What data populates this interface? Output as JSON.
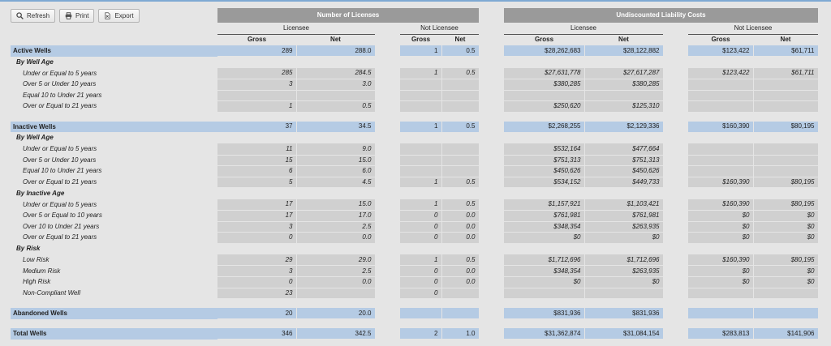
{
  "toolbar": {
    "refresh": "Refresh",
    "print": "Print",
    "export": "Export"
  },
  "headers": {
    "licenses": "Number of Licenses",
    "liability": "Undiscounted Liability Costs",
    "licensee": "Licensee",
    "not_licensee": "Not Licensee",
    "gross": "Gross",
    "net": "Net"
  },
  "rows": [
    {
      "type": "total",
      "label": "Active Wells",
      "v": [
        "289",
        "288.0",
        "1",
        "0.5",
        "$28,262,683",
        "$28,122,882",
        "$123,422",
        "$61,711"
      ]
    },
    {
      "type": "group",
      "label": "By Well Age",
      "v": null
    },
    {
      "type": "sub",
      "label": "Under or Equal to 5 years",
      "v": [
        "285",
        "284.5",
        "1",
        "0.5",
        "$27,631,778",
        "$27,617,287",
        "$123,422",
        "$61,711"
      ]
    },
    {
      "type": "sub",
      "label": "Over 5 or Under 10 years",
      "v": [
        "3",
        "3.0",
        "",
        "",
        "$380,285",
        "$380,285",
        "",
        ""
      ]
    },
    {
      "type": "sub",
      "label": "Equal 10 to Under 21 years",
      "v": [
        "",
        "",
        "",
        "",
        "",
        "",
        "",
        ""
      ]
    },
    {
      "type": "sub",
      "label": "Over or Equal to 21 years",
      "v": [
        "1",
        "0.5",
        "",
        "",
        "$250,620",
        "$125,310",
        "",
        ""
      ]
    },
    {
      "type": "blank"
    },
    {
      "type": "total",
      "label": "Inactive Wells",
      "v": [
        "37",
        "34.5",
        "1",
        "0.5",
        "$2,268,255",
        "$2,129,336",
        "$160,390",
        "$80,195"
      ]
    },
    {
      "type": "group",
      "label": "By Well Age",
      "v": null
    },
    {
      "type": "sub",
      "label": "Under or Equal to 5 years",
      "v": [
        "11",
        "9.0",
        "",
        "",
        "$532,164",
        "$477,664",
        "",
        ""
      ]
    },
    {
      "type": "sub",
      "label": "Over 5 or Under 10 years",
      "v": [
        "15",
        "15.0",
        "",
        "",
        "$751,313",
        "$751,313",
        "",
        ""
      ]
    },
    {
      "type": "sub",
      "label": "Equal 10 to Under 21 years",
      "v": [
        "6",
        "6.0",
        "",
        "",
        "$450,626",
        "$450,626",
        "",
        ""
      ]
    },
    {
      "type": "sub",
      "label": "Over or Equal to 21 years",
      "v": [
        "5",
        "4.5",
        "1",
        "0.5",
        "$534,152",
        "$449,733",
        "$160,390",
        "$80,195"
      ]
    },
    {
      "type": "group",
      "label": "By Inactive Age",
      "v": null
    },
    {
      "type": "sub",
      "label": "Under or Equal to 5 years",
      "v": [
        "17",
        "15.0",
        "1",
        "0.5",
        "$1,157,921",
        "$1,103,421",
        "$160,390",
        "$80,195"
      ]
    },
    {
      "type": "sub",
      "label": "Over 5 or Equal to 10 years",
      "v": [
        "17",
        "17.0",
        "0",
        "0.0",
        "$761,981",
        "$761,981",
        "$0",
        "$0"
      ]
    },
    {
      "type": "sub",
      "label": "Over 10 to Under 21 years",
      "v": [
        "3",
        "2.5",
        "0",
        "0.0",
        "$348,354",
        "$263,935",
        "$0",
        "$0"
      ]
    },
    {
      "type": "sub",
      "label": "Over or Equal to 21 years",
      "v": [
        "0",
        "0.0",
        "0",
        "0.0",
        "$0",
        "$0",
        "$0",
        "$0"
      ]
    },
    {
      "type": "group",
      "label": "By Risk",
      "v": null
    },
    {
      "type": "sub",
      "label": "Low Risk",
      "v": [
        "29",
        "29.0",
        "1",
        "0.5",
        "$1,712,696",
        "$1,712,696",
        "$160,390",
        "$80,195"
      ]
    },
    {
      "type": "sub",
      "label": "Medium Risk",
      "v": [
        "3",
        "2.5",
        "0",
        "0.0",
        "$348,354",
        "$263,935",
        "$0",
        "$0"
      ]
    },
    {
      "type": "sub",
      "label": "High Risk",
      "v": [
        "0",
        "0.0",
        "0",
        "0.0",
        "$0",
        "$0",
        "$0",
        "$0"
      ]
    },
    {
      "type": "sub",
      "label": "Non-Compliant Well",
      "v": [
        "23",
        "",
        "0",
        "",
        "",
        "",
        "",
        ""
      ]
    },
    {
      "type": "blank"
    },
    {
      "type": "total",
      "label": "Abandoned Wells",
      "v": [
        "20",
        "20.0",
        "",
        "",
        "$831,936",
        "$831,936",
        "",
        ""
      ]
    },
    {
      "type": "blank"
    },
    {
      "type": "total",
      "label": "Total Wells",
      "v": [
        "346",
        "342.5",
        "2",
        "1.0",
        "$31,362,874",
        "$31,084,154",
        "$283,813",
        "$141,906"
      ]
    }
  ]
}
